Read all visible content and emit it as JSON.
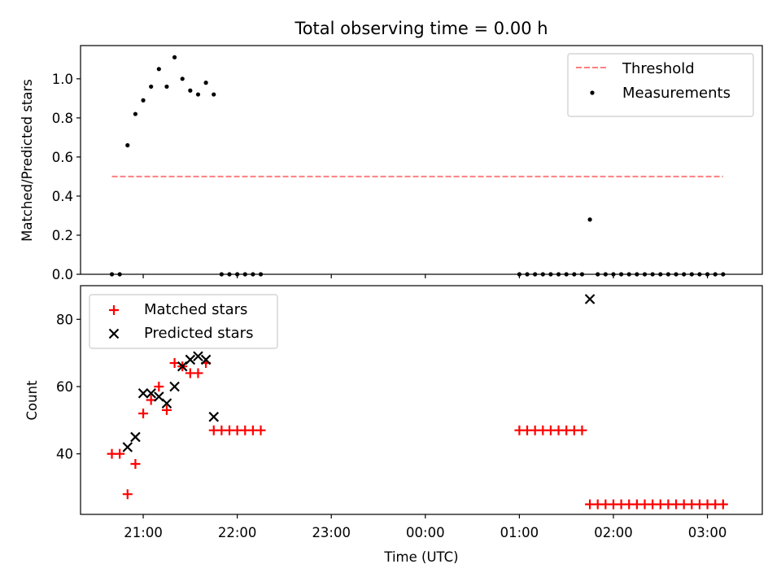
{
  "chart_data": [
    {
      "type": "scatter",
      "panel": "top",
      "title": "Total observing time = 0.00 h",
      "xlabel": "",
      "ylabel": "Matched/Predicted stars",
      "ylim": [
        0,
        1.17
      ],
      "yticks": [
        "0.0",
        "0.2",
        "0.4",
        "0.6",
        "0.8",
        "1.0"
      ],
      "legend_position": "upper right",
      "threshold": {
        "name": "Threshold",
        "value": 0.5,
        "x_start": "20:40",
        "x_end": "03:10",
        "color": "#ff7f7f",
        "style": "dashed"
      },
      "series": [
        {
          "name": "Measurements",
          "color": "#000000",
          "marker": "dot",
          "points": [
            [
              "20:40",
              0.0
            ],
            [
              "20:45",
              0.0
            ],
            [
              "20:50",
              0.66
            ],
            [
              "20:55",
              0.82
            ],
            [
              "21:00",
              0.89
            ],
            [
              "21:05",
              0.96
            ],
            [
              "21:10",
              1.05
            ],
            [
              "21:15",
              0.96
            ],
            [
              "21:20",
              1.11
            ],
            [
              "21:25",
              1.0
            ],
            [
              "21:30",
              0.94
            ],
            [
              "21:35",
              0.92
            ],
            [
              "21:40",
              0.98
            ],
            [
              "21:45",
              0.92
            ],
            [
              "21:50",
              0.0
            ],
            [
              "21:55",
              0.0
            ],
            [
              "22:00",
              0.0
            ],
            [
              "22:05",
              0.0
            ],
            [
              "22:10",
              0.0
            ],
            [
              "22:15",
              0.0
            ],
            [
              "01:00",
              0.0
            ],
            [
              "01:05",
              0.0
            ],
            [
              "01:10",
              0.0
            ],
            [
              "01:15",
              0.0
            ],
            [
              "01:20",
              0.0
            ],
            [
              "01:25",
              0.0
            ],
            [
              "01:30",
              0.0
            ],
            [
              "01:35",
              0.0
            ],
            [
              "01:40",
              0.0
            ],
            [
              "01:45",
              0.28
            ],
            [
              "01:50",
              0.0
            ],
            [
              "01:55",
              0.0
            ],
            [
              "02:00",
              0.0
            ],
            [
              "02:05",
              0.0
            ],
            [
              "02:10",
              0.0
            ],
            [
              "02:15",
              0.0
            ],
            [
              "02:20",
              0.0
            ],
            [
              "02:25",
              0.0
            ],
            [
              "02:30",
              0.0
            ],
            [
              "02:35",
              0.0
            ],
            [
              "02:40",
              0.0
            ],
            [
              "02:45",
              0.0
            ],
            [
              "02:50",
              0.0
            ],
            [
              "02:55",
              0.0
            ],
            [
              "03:00",
              0.0
            ],
            [
              "03:05",
              0.0
            ],
            [
              "03:10",
              0.0
            ]
          ]
        }
      ]
    },
    {
      "type": "scatter",
      "panel": "bottom",
      "title": "",
      "xlabel": "Time (UTC)",
      "ylabel": "Count",
      "ylim": [
        22,
        90
      ],
      "yticks": [
        "40",
        "60",
        "80"
      ],
      "xticks": [
        "21:00",
        "22:00",
        "23:00",
        "00:00",
        "01:00",
        "02:00",
        "03:00"
      ],
      "xlim": [
        "20:20",
        "03:35"
      ],
      "legend_position": "upper left",
      "series": [
        {
          "name": "Matched stars",
          "color": "#ff0000",
          "marker": "plus",
          "points": [
            [
              "20:40",
              40
            ],
            [
              "20:45",
              40
            ],
            [
              "20:50",
              28
            ],
            [
              "20:55",
              37
            ],
            [
              "21:00",
              52
            ],
            [
              "21:05",
              56
            ],
            [
              "21:10",
              60
            ],
            [
              "21:15",
              53
            ],
            [
              "21:20",
              67
            ],
            [
              "21:25",
              66
            ],
            [
              "21:30",
              64
            ],
            [
              "21:35",
              64
            ],
            [
              "21:40",
              67
            ],
            [
              "21:45",
              47
            ],
            [
              "21:50",
              47
            ],
            [
              "21:55",
              47
            ],
            [
              "22:00",
              47
            ],
            [
              "22:05",
              47
            ],
            [
              "22:10",
              47
            ],
            [
              "22:15",
              47
            ],
            [
              "01:00",
              47
            ],
            [
              "01:05",
              47
            ],
            [
              "01:10",
              47
            ],
            [
              "01:15",
              47
            ],
            [
              "01:20",
              47
            ],
            [
              "01:25",
              47
            ],
            [
              "01:30",
              47
            ],
            [
              "01:35",
              47
            ],
            [
              "01:40",
              47
            ],
            [
              "01:45",
              25
            ],
            [
              "01:50",
              25
            ],
            [
              "01:55",
              25
            ],
            [
              "02:00",
              25
            ],
            [
              "02:05",
              25
            ],
            [
              "02:10",
              25
            ],
            [
              "02:15",
              25
            ],
            [
              "02:20",
              25
            ],
            [
              "02:25",
              25
            ],
            [
              "02:30",
              25
            ],
            [
              "02:35",
              25
            ],
            [
              "02:40",
              25
            ],
            [
              "02:45",
              25
            ],
            [
              "02:50",
              25
            ],
            [
              "02:55",
              25
            ],
            [
              "03:00",
              25
            ],
            [
              "03:05",
              25
            ],
            [
              "03:10",
              25
            ]
          ]
        },
        {
          "name": "Predicted stars",
          "color": "#000000",
          "marker": "x",
          "points": [
            [
              "20:50",
              42
            ],
            [
              "20:55",
              45
            ],
            [
              "21:00",
              58
            ],
            [
              "21:05",
              58
            ],
            [
              "21:10",
              57
            ],
            [
              "21:15",
              55
            ],
            [
              "21:20",
              60
            ],
            [
              "21:25",
              66
            ],
            [
              "21:30",
              68
            ],
            [
              "21:35",
              69
            ],
            [
              "21:40",
              68
            ],
            [
              "21:45",
              51
            ],
            [
              "01:45",
              86
            ]
          ]
        }
      ]
    }
  ]
}
